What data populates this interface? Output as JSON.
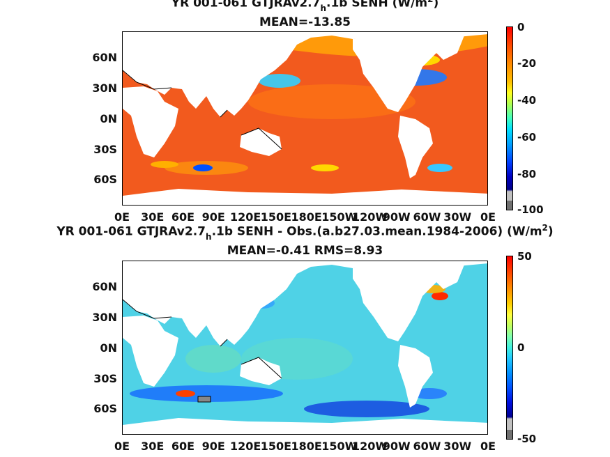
{
  "panel1": {
    "title_main": "YR 001-061 GTJRAv2.7",
    "title_sub": "h",
    "title_tail": ".1b  SENH (W/m",
    "title_sup": "2",
    "title_close": ")",
    "mean_text": "MEAN=-13.85",
    "colorbar_ticks": [
      "0",
      "-20",
      "-40",
      "-60",
      "-80",
      "-100"
    ],
    "colorbar_range": [
      -100,
      0
    ]
  },
  "panel2": {
    "title_main": "YR 001-061 GTJRAv2.7",
    "title_sub": "h",
    "title_tail": ".1b SENH - Obs.(a.b27.03.mean.1984-2006) (W/m",
    "title_sup": "2",
    "title_close": ")",
    "mean_text": "MEAN=-0.41 RMS=8.93",
    "colorbar_ticks": [
      "50",
      "0",
      "-50"
    ],
    "colorbar_range": [
      -50,
      50
    ]
  },
  "axes": {
    "y_labels": [
      "60N",
      "30N",
      "0N",
      "30S",
      "60S"
    ],
    "x_labels": [
      "0E",
      "30E",
      "60E",
      "90E",
      "120E",
      "150E",
      "180E",
      "150W",
      "120W",
      "90W",
      "60W",
      "30W",
      "0E"
    ]
  },
  "colors": {
    "panel1_ocean": "#f25a1e",
    "panel2_ocean": "#4fd2e6",
    "land": "#ffffff",
    "colormap": [
      "#6e0000",
      "#c80000",
      "#ff3000",
      "#ff8a00",
      "#ffd800",
      "#c0ff40",
      "#50ffb0",
      "#00d8ff",
      "#0080ff",
      "#0010d0",
      "#000080",
      "#bfbfbf",
      "#6e6e6e"
    ]
  }
}
